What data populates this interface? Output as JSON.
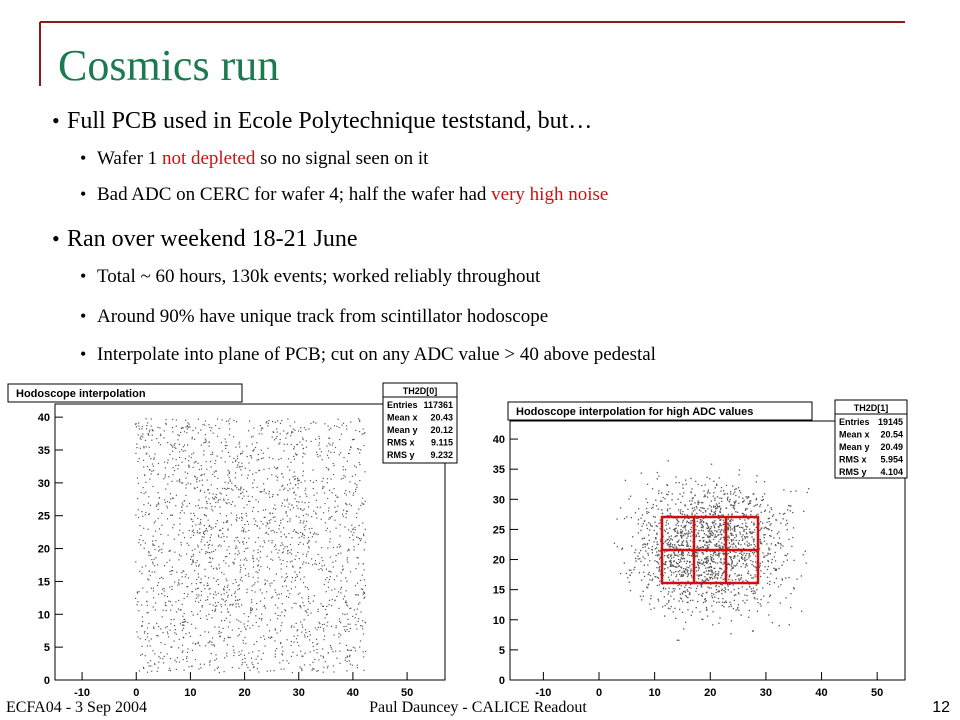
{
  "slide": {
    "title": "Cosmics run",
    "bullets": [
      {
        "level": 1,
        "parts": [
          {
            "text": "Full PCB used in Ecole Polytechnique teststand, but…"
          }
        ]
      },
      {
        "level": 2,
        "parts": [
          {
            "text": "Wafer 1 "
          },
          {
            "text": "not depleted",
            "highlight": true
          },
          {
            "text": " so no signal seen on it"
          }
        ]
      },
      {
        "level": 2,
        "parts": [
          {
            "text": "Bad ADC on CERC for wafer 4; half the wafer had "
          },
          {
            "text": "very high noise",
            "highlight": true
          }
        ]
      },
      {
        "level": 1,
        "parts": [
          {
            "text": "Ran over weekend 18-21 June"
          }
        ]
      },
      {
        "level": 2,
        "parts": [
          {
            "text": "Total ~ 60 hours, 130k events; worked reliably throughout"
          }
        ]
      },
      {
        "level": 2,
        "parts": [
          {
            "text": "Around 90% have unique track from scintillator hodoscope"
          }
        ]
      },
      {
        "level": 2,
        "parts": [
          {
            "text": "Interpolate into plane of PCB; cut on any ADC value > 40 above pedestal"
          }
        ]
      }
    ],
    "plots": [
      {
        "title": "Hodoscope interpolation",
        "stats_name": "TH2D[0]",
        "stats": [
          {
            "label": "Entries",
            "value": "117361"
          },
          {
            "label": "Mean x",
            "value": "20.43"
          },
          {
            "label": "Mean y",
            "value": "20.12"
          },
          {
            "label": "RMS x",
            "value": "9.115"
          },
          {
            "label": "RMS y",
            "value": "9.232"
          }
        ],
        "xlim": [
          -15,
          57
        ],
        "ylim": [
          0,
          42
        ],
        "xticks": [
          -10,
          0,
          10,
          20,
          30,
          40,
          50
        ],
        "yticks": [
          0,
          5,
          10,
          15,
          20,
          25,
          30,
          35,
          40
        ]
      },
      {
        "title": "Hodoscope interpolation for high ADC values",
        "stats_name": "TH2D[1]",
        "stats": [
          {
            "label": "Entries",
            "value": "19145"
          },
          {
            "label": "Mean x",
            "value": "20.54"
          },
          {
            "label": "Mean y",
            "value": "20.49"
          },
          {
            "label": "RMS x",
            "value": "5.954"
          },
          {
            "label": "RMS y",
            "value": "4.104"
          }
        ],
        "xlim": [
          -16,
          55
        ],
        "ylim": [
          0,
          43
        ],
        "xticks": [
          -10,
          0,
          10,
          20,
          30,
          40,
          50
        ],
        "yticks": [
          0,
          5,
          10,
          15,
          20,
          25,
          30,
          35,
          40
        ]
      }
    ],
    "footer": {
      "left": "ECFA04 - 3 Sep 2004",
      "center": "Paul Dauncey - CALICE Readout",
      "page": "12"
    }
  }
}
